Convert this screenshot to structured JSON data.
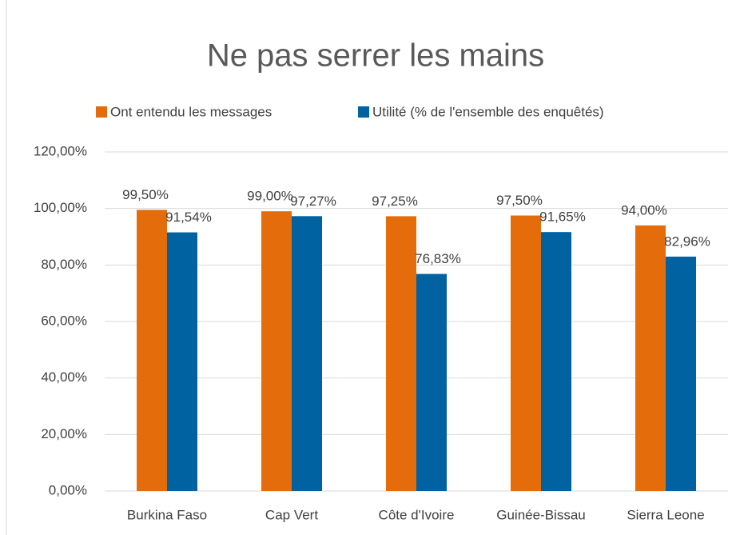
{
  "chart_data": {
    "type": "bar",
    "title": "Ne pas serrer les mains",
    "categories": [
      "Burkina Faso",
      "Cap Vert",
      "Côte d'Ivoire",
      "Guinée-Bissau",
      "Sierra Leone"
    ],
    "series": [
      {
        "name": "Ont entendu les messages",
        "color": "#e46c0a",
        "values": [
          99.5,
          99.0,
          97.25,
          97.5,
          94.0
        ],
        "value_labels": [
          "99,50%",
          "99,00%",
          "97,25%",
          "97,50%",
          "94,00%"
        ]
      },
      {
        "name": "Utilité (% de l'ensemble des enquêtés)",
        "color": "#0062a0",
        "values": [
          91.54,
          97.27,
          76.83,
          91.65,
          82.96
        ],
        "value_labels": [
          "91,54%",
          "97,27%",
          "76,83%",
          "91,65%",
          "82,96%"
        ]
      }
    ],
    "ylim": [
      0,
      120
    ],
    "yticks": [
      {
        "value": 0,
        "label": "0,00%"
      },
      {
        "value": 20,
        "label": "20,00%"
      },
      {
        "value": 40,
        "label": "40,00%"
      },
      {
        "value": 60,
        "label": "60,00%"
      },
      {
        "value": 80,
        "label": "80,00%"
      },
      {
        "value": 100,
        "label": "100,00%"
      },
      {
        "value": 120,
        "label": "120,00%"
      }
    ],
    "grid": true,
    "legend": "top"
  }
}
